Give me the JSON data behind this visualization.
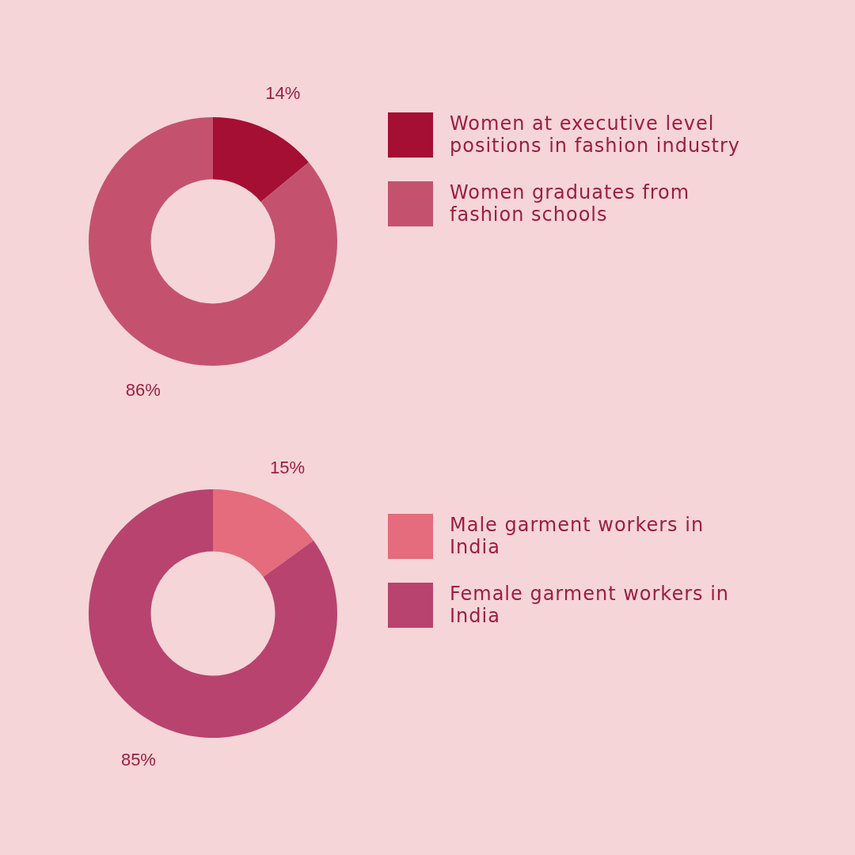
{
  "chart_data": [
    {
      "type": "donut",
      "categories": [
        "Women at executive level positions in fashion industry",
        "Women graduates from fashion schools"
      ],
      "values": [
        14,
        86
      ],
      "colors": [
        "#a50f34",
        "#c4526f"
      ],
      "value_labels": [
        "14%",
        "86%"
      ],
      "legend": "right"
    },
    {
      "type": "donut",
      "categories": [
        "Male garment workers in India",
        "Female garment workers in India"
      ],
      "values": [
        15,
        85
      ],
      "colors": [
        "#e46c7c",
        "#b8436f"
      ],
      "value_labels": [
        "15%",
        "85%"
      ],
      "legend": "right"
    }
  ]
}
